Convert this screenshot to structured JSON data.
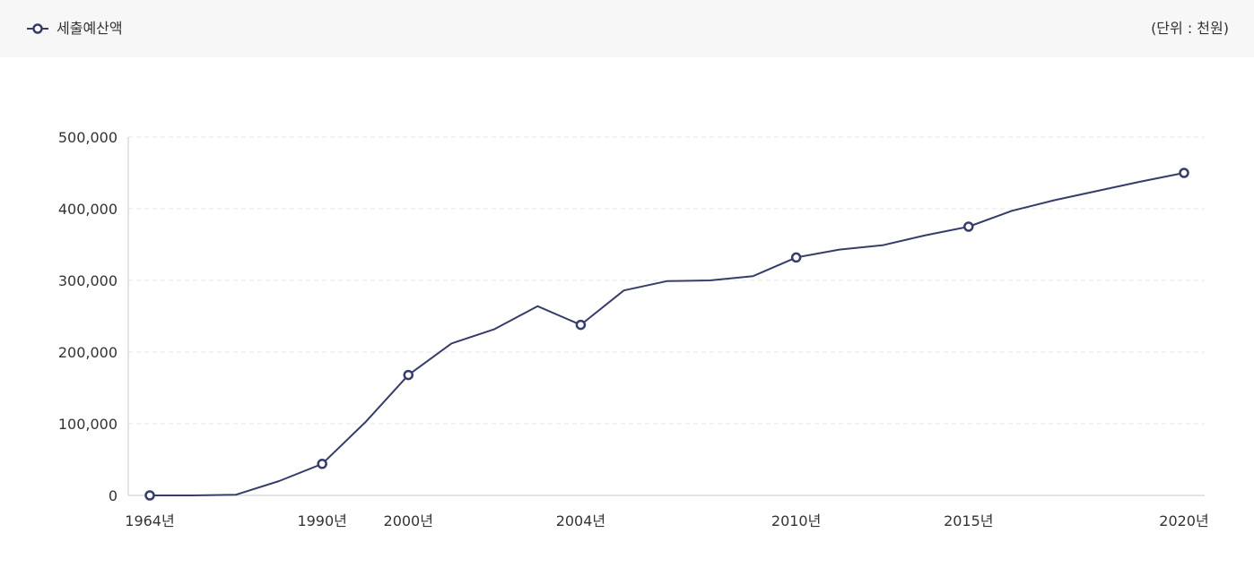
{
  "header": {
    "legend_label": "세출예산액",
    "unit_label": "(단위 : 천원)"
  },
  "colors": {
    "series": "#363d6b",
    "grid": "#e6e6e6",
    "axis": "#c8c8c8",
    "header_bg": "#f7f7f7"
  },
  "chart_data": {
    "type": "line",
    "title": "",
    "xlabel": "",
    "ylabel": "",
    "ylim": [
      0,
      500000
    ],
    "yticks": [
      "500,000",
      "400,000",
      "300,000",
      "200,000",
      "100,000",
      "0"
    ],
    "grid": true,
    "legend_position": "top-left",
    "x_labels": [
      "1964년",
      "1990년",
      "2000년",
      "2004년",
      "2010년",
      "2015년",
      "2020년"
    ],
    "series": [
      {
        "name": "세출예산액",
        "values": [
          0,
          0,
          1000,
          20000,
          44000,
          102000,
          168000,
          212000,
          232000,
          264000,
          238000,
          286000,
          299000,
          300000,
          306000,
          332000,
          343000,
          349000,
          363000,
          375000,
          397000,
          412000,
          425000,
          438000,
          450000
        ],
        "label_index": [
          0,
          -1,
          -1,
          -1,
          1,
          -1,
          2,
          -1,
          -1,
          -1,
          3,
          -1,
          -1,
          -1,
          -1,
          4,
          -1,
          -1,
          -1,
          5,
          -1,
          -1,
          -1,
          -1,
          6
        ],
        "marker_index": [
          0,
          4,
          6,
          10,
          15,
          19,
          24
        ]
      }
    ]
  }
}
